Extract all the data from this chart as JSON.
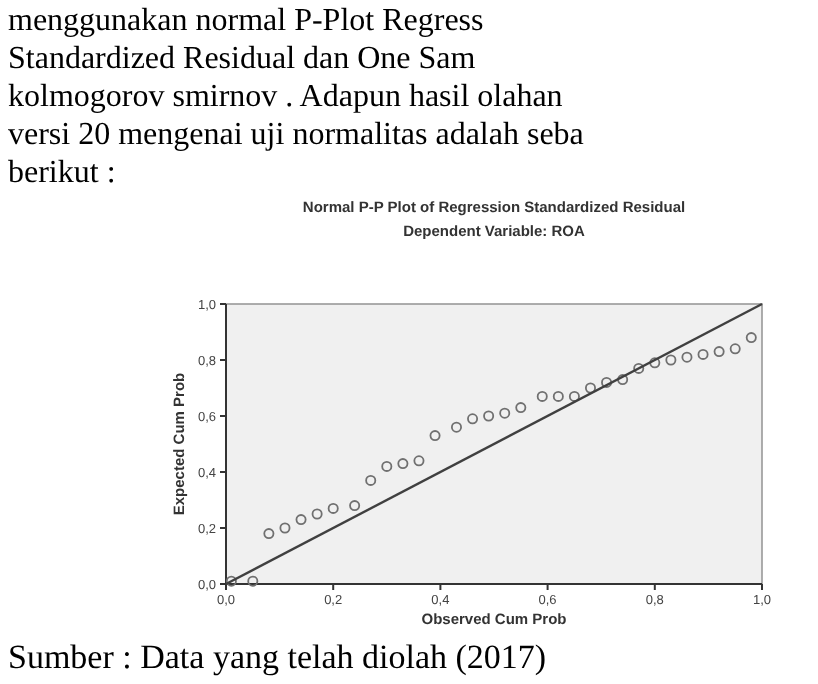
{
  "chart_data": {
    "type": "scatter",
    "title": "Normal P-P Plot of Regression Standardized Residual",
    "subtitle": "Dependent Variable: ROA",
    "xlabel": "Observed Cum Prob",
    "ylabel": "Expected Cum Prob",
    "annotations": [
      "menggunakan normal P-Plot Regress",
      "Standardized Residual dan One Sam",
      "kolmogorov smirnov . Adapun hasil olahan",
      "versi 20 mengenai uji normalitas adalah seba",
      "berikut :",
      "Sumber : Data yang telah diolah (2017)"
    ],
    "xlim": [
      0,
      1
    ],
    "ylim": [
      0,
      1
    ],
    "xticks": [
      {
        "value": 0,
        "label": "0,0"
      },
      {
        "value": 0.2,
        "label": "0,2"
      },
      {
        "value": 0.4,
        "label": "0,4"
      },
      {
        "value": 0.6,
        "label": "0,6"
      },
      {
        "value": 0.8,
        "label": "0,8"
      },
      {
        "value": 1,
        "label": "1,0"
      }
    ],
    "yticks": [
      {
        "value": 0,
        "label": "0,0"
      },
      {
        "value": 0.2,
        "label": "0,2"
      },
      {
        "value": 0.4,
        "label": "0,4"
      },
      {
        "value": 0.6,
        "label": "0,6"
      },
      {
        "value": 0.8,
        "label": "0,8"
      },
      {
        "value": 1,
        "label": "1,0"
      }
    ],
    "grid": false,
    "series": [
      {
        "marker": "circle",
        "color": "#707070",
        "x": [
          0.01,
          0.05,
          0.08,
          0.11,
          0.14,
          0.17,
          0.2,
          0.24,
          0.27,
          0.3,
          0.33,
          0.36,
          0.39,
          0.43,
          0.46,
          0.49,
          0.52,
          0.55,
          0.59,
          0.62,
          0.65,
          0.68,
          0.71,
          0.74,
          0.77,
          0.8,
          0.83,
          0.86,
          0.89,
          0.92,
          0.95,
          0.98
        ],
        "values": [
          0.01,
          0.01,
          0.18,
          0.2,
          0.23,
          0.25,
          0.27,
          0.28,
          0.37,
          0.42,
          0.43,
          0.44,
          0.53,
          0.56,
          0.59,
          0.6,
          0.61,
          0.63,
          0.67,
          0.67,
          0.67,
          0.7,
          0.72,
          0.73,
          0.77,
          0.79,
          0.8,
          0.81,
          0.82,
          0.83,
          0.84,
          0.88
        ]
      },
      {
        "type": "line",
        "marker": "none",
        "line_style": "solid",
        "color": "#404040",
        "x": [
          0,
          1
        ],
        "values": [
          0,
          1
        ]
      }
    ]
  }
}
